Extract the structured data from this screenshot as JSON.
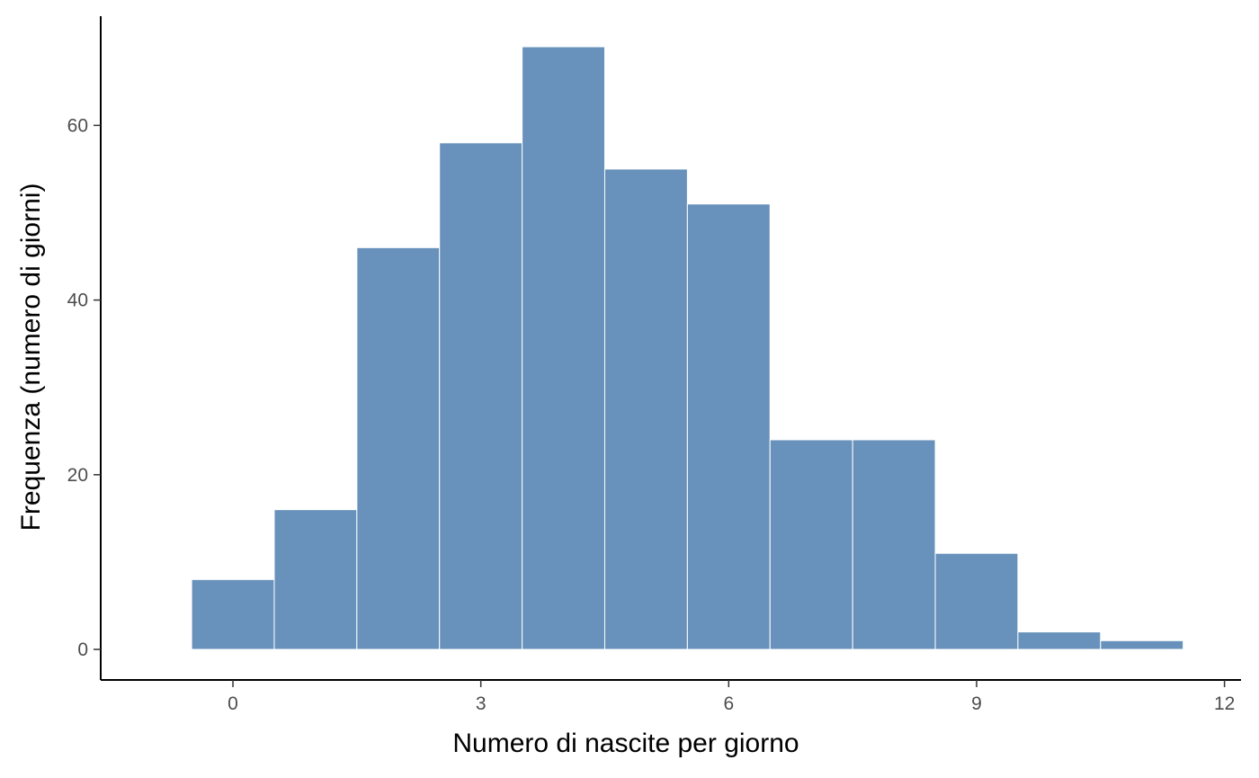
{
  "chart_data": {
    "type": "bar",
    "title": "",
    "xlabel": "Numero di nascite per giorno",
    "ylabel": "Frequenza (numero di giorni)",
    "bin_width": 1,
    "x": [
      0,
      1,
      2,
      3,
      4,
      5,
      6,
      7,
      8,
      9,
      10,
      11
    ],
    "values": [
      8,
      16,
      46,
      58,
      69,
      55,
      51,
      24,
      24,
      11,
      2,
      1
    ],
    "xlim": [
      -1.6,
      12.2
    ],
    "ylim": [
      -3.5,
      72.5
    ],
    "xticks": [
      0,
      3,
      6,
      9,
      12
    ],
    "yticks": [
      0,
      20,
      40,
      60
    ],
    "xtick_labels": [
      "0",
      "3",
      "6",
      "9",
      "12"
    ],
    "ytick_labels": [
      "0",
      "20",
      "40",
      "60"
    ],
    "grid": false,
    "legend": "none",
    "colors": {
      "bar_fill": "#6892bb",
      "bar_stroke": "#ffffff",
      "axis": "#000000",
      "tick_text": "#4d4d4d"
    }
  }
}
